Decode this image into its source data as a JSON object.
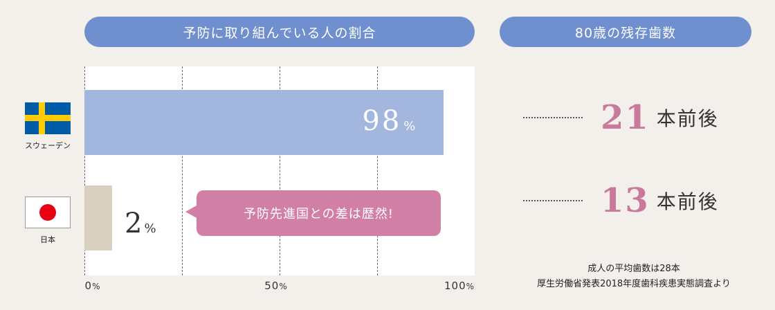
{
  "left_header": "予防に取り組んでいる人の割合",
  "right_header": "80歳の残存歯数",
  "chart_data": {
    "type": "bar",
    "orientation": "horizontal",
    "categories": [
      "スウェーデン",
      "日本"
    ],
    "values": [
      98,
      2
    ],
    "value_labels": [
      {
        "num": "98",
        "unit": "%"
      },
      {
        "num": "2",
        "unit": "%"
      }
    ],
    "bar_colors": [
      "#a3b7de",
      "#d8d0c1"
    ],
    "xlim": [
      0,
      100
    ],
    "xticks": [
      {
        "value": 0,
        "num": "0",
        "unit": "%"
      },
      {
        "value": 50,
        "num": "50",
        "unit": "%"
      },
      {
        "value": 100,
        "num": "100",
        "unit": "%"
      }
    ],
    "grid": true
  },
  "countries": {
    "sweden": {
      "label": "スウェーデン",
      "icon": "sweden-flag-icon"
    },
    "japan": {
      "label": "日本",
      "icon": "japan-flag-icon"
    }
  },
  "callout": "予防先進国との差は歴然!",
  "teeth": [
    {
      "num": "21",
      "unit": "本前後"
    },
    {
      "num": "13",
      "unit": "本前後"
    }
  ],
  "source": {
    "line1": "成人の平均歯数は28本",
    "line2": "厚生労働省発表2018年度歯科疾患実態調査より"
  },
  "colors": {
    "header_bg": "#6f8fcf",
    "callout_bg": "#d27fa6",
    "teeth_number": "#c97a9b"
  }
}
